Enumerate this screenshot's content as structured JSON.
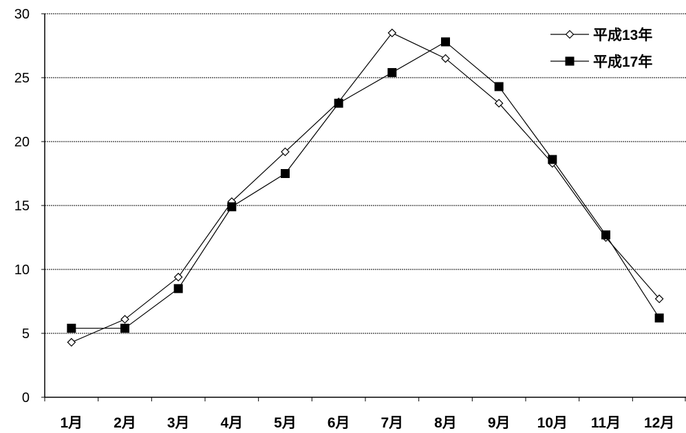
{
  "chart_data": {
    "type": "line",
    "title": "",
    "xlabel": "",
    "ylabel": "",
    "categories": [
      "1月",
      "2月",
      "3月",
      "4月",
      "5月",
      "6月",
      "7月",
      "8月",
      "9月",
      "10月",
      "11月",
      "12月"
    ],
    "ylim": [
      0,
      30
    ],
    "yticks": [
      "0",
      "5",
      "10",
      "15",
      "20",
      "25",
      "30"
    ],
    "grid": "horizontal dashed",
    "legend_position": "top-right",
    "series": [
      {
        "name": "平成13年",
        "marker": "open-diamond",
        "color": "#000000",
        "values": [
          4.3,
          6.1,
          9.4,
          15.3,
          19.2,
          23.1,
          28.5,
          26.5,
          23.0,
          18.3,
          12.5,
          7.7
        ]
      },
      {
        "name": "平成17年",
        "marker": "filled-square",
        "color": "#000000",
        "values": [
          5.4,
          5.4,
          8.5,
          14.9,
          17.5,
          23.0,
          25.4,
          27.8,
          24.3,
          18.6,
          12.7,
          6.2
        ]
      }
    ]
  }
}
